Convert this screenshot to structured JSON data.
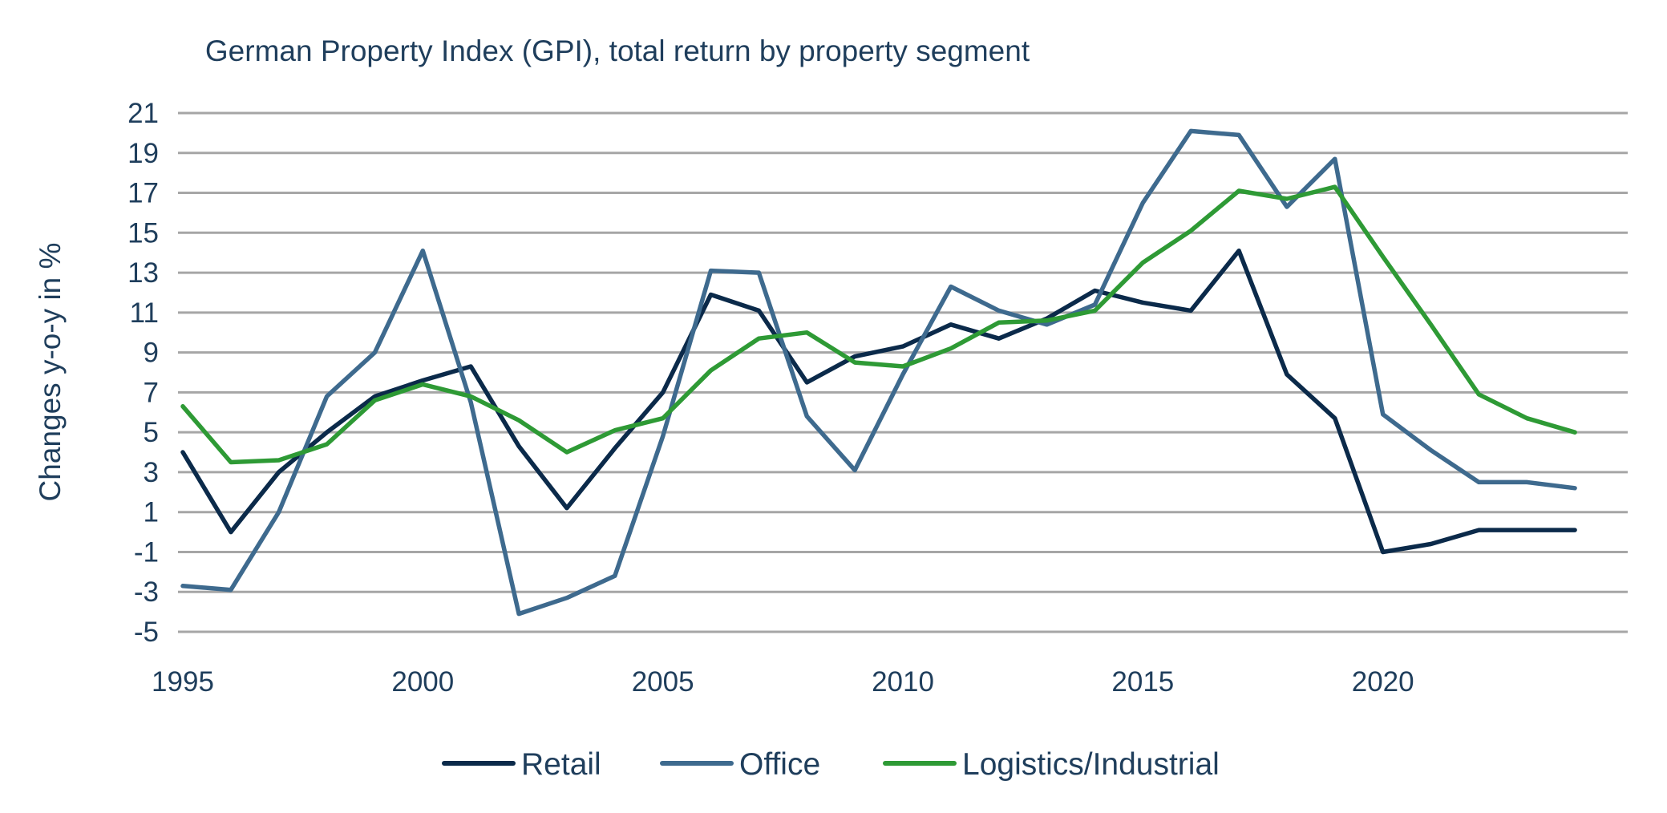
{
  "chart_data": {
    "type": "line",
    "title": "German Property Index (GPI), total return by property segment",
    "xlabel": "",
    "ylabel": "Changes y-o-y in %",
    "x": [
      1995,
      1996,
      1997,
      1998,
      1999,
      2000,
      2001,
      2002,
      2003,
      2004,
      2005,
      2006,
      2007,
      2008,
      2009,
      2010,
      2011,
      2012,
      2013,
      2014,
      2015,
      2016,
      2017,
      2018,
      2019,
      2020,
      2021,
      2022,
      2023,
      2024
    ],
    "xlim": [
      1994.9,
      2025.1
    ],
    "xticks": [
      "1995",
      "2000",
      "2005",
      "2010",
      "2015",
      "2020"
    ],
    "ylim": [
      -5,
      21
    ],
    "yticks": [
      "21",
      "19",
      "17",
      "15",
      "13",
      "11",
      "9",
      "7",
      "5",
      "3",
      "1",
      "-1",
      "-3",
      "-5"
    ],
    "grid": true,
    "legend_position": "bottom",
    "series": [
      {
        "name": "Retail",
        "color": "#0b2a4a",
        "values": [
          4.0,
          0.0,
          3.0,
          5.0,
          6.8,
          7.6,
          8.3,
          4.3,
          1.2,
          4.2,
          7.0,
          11.9,
          11.1,
          7.5,
          8.8,
          9.3,
          10.4,
          9.7,
          10.7,
          12.1,
          11.5,
          11.1,
          14.1,
          7.9,
          5.7,
          -1.0,
          -0.6,
          0.1,
          0.1,
          0.1
        ]
      },
      {
        "name": "Office",
        "color": "#3e6a8e",
        "values": [
          -2.7,
          -2.9,
          1.0,
          6.8,
          9.0,
          14.1,
          6.5,
          -4.1,
          -3.3,
          -2.2,
          4.8,
          13.1,
          13.0,
          5.8,
          3.1,
          7.9,
          12.3,
          11.1,
          10.4,
          11.4,
          16.5,
          20.1,
          19.9,
          16.3,
          18.7,
          5.9,
          4.1,
          2.5,
          2.5,
          2.2
        ]
      },
      {
        "name": "Logistics/Industrial",
        "color": "#2e9a35",
        "values": [
          6.3,
          3.5,
          3.6,
          4.4,
          6.6,
          7.4,
          6.8,
          5.6,
          4.0,
          5.1,
          5.7,
          8.1,
          9.7,
          10.0,
          8.5,
          8.3,
          9.2,
          10.5,
          10.6,
          11.1,
          13.5,
          15.1,
          17.1,
          16.7,
          17.3,
          13.8,
          10.4,
          6.9,
          5.7,
          5.0
        ]
      }
    ]
  }
}
